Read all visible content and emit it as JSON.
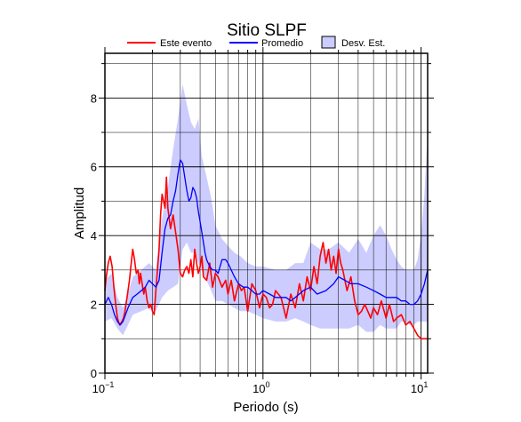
{
  "chart_data": {
    "type": "line",
    "title": "Sitio SLPF",
    "xlabel": "Periodo (s)",
    "ylabel": "Amplitud",
    "x_scale": "log",
    "xlim": [
      0.1,
      11
    ],
    "ylim": [
      0,
      9.3
    ],
    "y_ticks": [
      "0",
      "2",
      "4",
      "6",
      "8"
    ],
    "x_ticks": [
      {
        "base": "10",
        "exp": "−1"
      },
      {
        "base": "10",
        "exp": "0"
      },
      {
        "base": "10",
        "exp": "1"
      }
    ],
    "grid": true,
    "legend": {
      "placement": "top-center",
      "entries": [
        {
          "label": "Este evento",
          "color": "#ff0000",
          "kind": "line"
        },
        {
          "label": "Promedio",
          "color": "#0000ff",
          "kind": "line"
        },
        {
          "label": "Desv. Est.",
          "color": "#ccccff",
          "kind": "box"
        }
      ]
    },
    "series": [
      {
        "name": "Este evento",
        "color": "#ff0000",
        "x": [
          0.1,
          0.102,
          0.105,
          0.108,
          0.111,
          0.114,
          0.117,
          0.12,
          0.124,
          0.128,
          0.131,
          0.134,
          0.137,
          0.14,
          0.143,
          0.146,
          0.15,
          0.154,
          0.158,
          0.162,
          0.165,
          0.168,
          0.172,
          0.176,
          0.18,
          0.185,
          0.19,
          0.195,
          0.2,
          0.205,
          0.21,
          0.215,
          0.22,
          0.225,
          0.23,
          0.235,
          0.24,
          0.245,
          0.25,
          0.26,
          0.27,
          0.28,
          0.29,
          0.3,
          0.31,
          0.32,
          0.33,
          0.34,
          0.35,
          0.36,
          0.37,
          0.38,
          0.39,
          0.4,
          0.41,
          0.42,
          0.44,
          0.46,
          0.48,
          0.5,
          0.52,
          0.55,
          0.58,
          0.6,
          0.63,
          0.66,
          0.7,
          0.73,
          0.76,
          0.8,
          0.85,
          0.9,
          0.95,
          1.0,
          1.05,
          1.1,
          1.15,
          1.2,
          1.3,
          1.4,
          1.5,
          1.6,
          1.7,
          1.8,
          1.9,
          2.0,
          2.1,
          2.2,
          2.3,
          2.4,
          2.5,
          2.6,
          2.7,
          2.8,
          2.9,
          3.0,
          3.1,
          3.2,
          3.4,
          3.6,
          3.8,
          4.0,
          4.2,
          4.4,
          4.6,
          4.8,
          5.0,
          5.3,
          5.6,
          6.0,
          6.3,
          6.7,
          7.0,
          7.5,
          8.0,
          8.5,
          9.0,
          9.5,
          10.0,
          10.5,
          11.0
        ],
        "values": [
          2.4,
          2.8,
          3.2,
          3.4,
          3.1,
          2.5,
          2.0,
          1.6,
          1.4,
          1.5,
          1.6,
          1.8,
          2.1,
          2.4,
          2.7,
          3.1,
          3.6,
          3.3,
          2.9,
          3.0,
          2.6,
          2.9,
          2.6,
          2.3,
          2.5,
          2.1,
          1.9,
          2.0,
          1.8,
          1.7,
          2.4,
          3.0,
          3.6,
          4.6,
          5.2,
          5.0,
          4.8,
          5.7,
          4.8,
          4.2,
          4.6,
          4.1,
          3.6,
          2.9,
          2.8,
          3.0,
          3.1,
          2.9,
          3.3,
          2.8,
          3.6,
          3.2,
          2.9,
          3.1,
          3.4,
          2.8,
          2.7,
          3.2,
          2.5,
          2.9,
          2.8,
          2.5,
          2.7,
          2.3,
          2.7,
          2.1,
          2.6,
          2.4,
          2.5,
          1.8,
          2.6,
          2.4,
          1.9,
          2.3,
          2.2,
          1.9,
          2.0,
          2.4,
          2.2,
          1.6,
          2.3,
          1.9,
          2.6,
          2.1,
          2.8,
          2.4,
          3.1,
          2.6,
          3.4,
          3.8,
          3.2,
          3.6,
          3.0,
          3.4,
          2.9,
          3.6,
          3.2,
          3.0,
          2.4,
          2.8,
          2.1,
          1.7,
          1.8,
          2.0,
          1.8,
          1.6,
          1.9,
          1.7,
          2.1,
          1.6,
          2.0,
          1.5,
          1.6,
          1.7,
          1.4,
          1.5,
          1.3,
          1.1,
          1.0,
          1.0,
          1.0
        ]
      },
      {
        "name": "Promedio",
        "color": "#0000ff",
        "x": [
          0.1,
          0.105,
          0.11,
          0.115,
          0.12,
          0.125,
          0.13,
          0.135,
          0.14,
          0.15,
          0.16,
          0.17,
          0.18,
          0.19,
          0.2,
          0.21,
          0.22,
          0.23,
          0.24,
          0.25,
          0.26,
          0.27,
          0.28,
          0.29,
          0.3,
          0.31,
          0.32,
          0.33,
          0.34,
          0.35,
          0.36,
          0.37,
          0.38,
          0.39,
          0.4,
          0.41,
          0.42,
          0.43,
          0.44,
          0.46,
          0.48,
          0.5,
          0.52,
          0.55,
          0.58,
          0.6,
          0.63,
          0.66,
          0.7,
          0.75,
          0.8,
          0.85,
          0.9,
          0.95,
          1.0,
          1.1,
          1.2,
          1.3,
          1.4,
          1.5,
          1.6,
          1.8,
          2.0,
          2.2,
          2.5,
          2.8,
          3.0,
          3.3,
          3.6,
          4.0,
          4.5,
          5.0,
          5.5,
          6.0,
          6.5,
          7.0,
          7.5,
          8.0,
          8.5,
          9.0,
          9.5,
          10.0,
          10.5,
          11.0
        ],
        "values": [
          2.0,
          2.2,
          2.0,
          1.7,
          1.5,
          1.4,
          1.5,
          1.7,
          1.9,
          2.2,
          2.3,
          2.4,
          2.5,
          2.7,
          2.6,
          2.5,
          2.7,
          3.5,
          4.2,
          4.5,
          4.6,
          5.0,
          5.3,
          5.8,
          6.2,
          6.1,
          5.7,
          5.3,
          5.0,
          5.1,
          5.4,
          5.3,
          5.1,
          4.7,
          4.4,
          4.1,
          3.8,
          3.5,
          3.3,
          3.1,
          3.0,
          3.0,
          2.9,
          3.3,
          3.3,
          3.2,
          3.0,
          2.8,
          2.6,
          2.5,
          2.5,
          2.4,
          2.3,
          2.3,
          2.4,
          2.3,
          2.2,
          2.2,
          2.2,
          2.1,
          2.2,
          2.4,
          2.5,
          2.3,
          2.4,
          2.6,
          2.8,
          2.7,
          2.6,
          2.6,
          2.5,
          2.4,
          2.3,
          2.2,
          2.2,
          2.2,
          2.1,
          2.1,
          2.0,
          2.0,
          2.1,
          2.3,
          2.6,
          3.0
        ]
      }
    ],
    "band": {
      "name": "Desv. Est.",
      "color": "#ccccff",
      "x": [
        0.1,
        0.11,
        0.12,
        0.13,
        0.14,
        0.15,
        0.17,
        0.19,
        0.21,
        0.23,
        0.25,
        0.27,
        0.29,
        0.31,
        0.33,
        0.35,
        0.37,
        0.39,
        0.41,
        0.44,
        0.47,
        0.5,
        0.55,
        0.6,
        0.66,
        0.72,
        0.8,
        0.9,
        1.0,
        1.2,
        1.4,
        1.6,
        1.8,
        2.0,
        2.3,
        2.6,
        3.0,
        3.5,
        4.0,
        4.5,
        5.0,
        5.5,
        6.0,
        6.5,
        7.0,
        7.5,
        8.0,
        8.5,
        9.0,
        9.5,
        10.0,
        10.5,
        11.0
      ],
      "upper": [
        2.7,
        2.9,
        2.2,
        1.9,
        2.3,
        2.8,
        3.0,
        3.2,
        3.0,
        4.5,
        5.4,
        6.5,
        7.4,
        8.4,
        7.8,
        7.3,
        7.1,
        7.4,
        6.3,
        5.7,
        5.1,
        4.3,
        3.9,
        3.7,
        3.5,
        3.4,
        3.2,
        3.1,
        3.1,
        3.0,
        3.0,
        3.2,
        3.2,
        3.8,
        3.6,
        3.6,
        3.8,
        3.5,
        3.9,
        3.5,
        4.0,
        4.3,
        4.0,
        3.6,
        3.3,
        3.1,
        3.0,
        3.0,
        3.0,
        3.3,
        4.0,
        5.2,
        7.0
      ],
      "lower": [
        1.5,
        1.6,
        1.3,
        1.1,
        1.4,
        1.7,
        1.8,
        1.9,
        1.8,
        2.2,
        2.4,
        2.5,
        2.6,
        3.6,
        3.8,
        3.5,
        3.5,
        3.2,
        3.0,
        2.7,
        2.4,
        2.1,
        2.1,
        2.0,
        1.9,
        1.8,
        1.8,
        1.7,
        1.6,
        1.5,
        1.5,
        1.6,
        1.5,
        1.4,
        1.3,
        1.3,
        1.3,
        1.3,
        1.4,
        1.2,
        1.2,
        1.4,
        1.3,
        1.3,
        1.3,
        1.5,
        1.5,
        1.4,
        1.4,
        1.5,
        1.5,
        1.5,
        1.5
      ]
    }
  }
}
